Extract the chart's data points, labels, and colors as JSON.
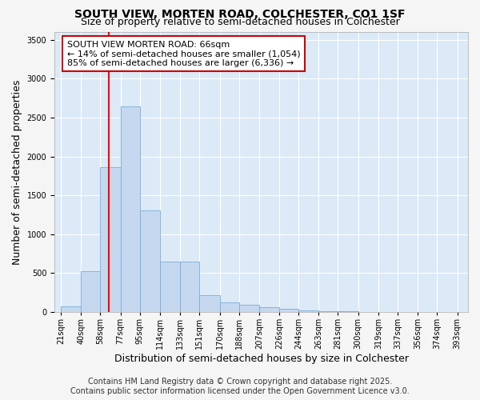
{
  "title": "SOUTH VIEW, MORTEN ROAD, COLCHESTER, CO1 1SF",
  "subtitle": "Size of property relative to semi-detached houses in Colchester",
  "xlabel": "Distribution of semi-detached houses by size in Colchester",
  "ylabel": "Number of semi-detached properties",
  "footer_line1": "Contains HM Land Registry data © Crown copyright and database right 2025.",
  "footer_line2": "Contains public sector information licensed under the Open Government Licence v3.0.",
  "annotation_title": "SOUTH VIEW MORTEN ROAD: 66sqm",
  "annotation_line2": "← 14% of semi-detached houses are smaller (1,054)",
  "annotation_line3": "85% of semi-detached houses are larger (6,336) →",
  "property_size": 66,
  "bin_edges": [
    21,
    40,
    58,
    77,
    95,
    114,
    133,
    151,
    170,
    188,
    207,
    226,
    244,
    263,
    281,
    300,
    319,
    337,
    356,
    374,
    393
  ],
  "bar_heights": [
    75,
    530,
    1860,
    2640,
    1310,
    650,
    650,
    220,
    120,
    90,
    65,
    45,
    25,
    15,
    8,
    5,
    3,
    2,
    1,
    1
  ],
  "tick_labels": [
    "21sqm",
    "40sqm",
    "58sqm",
    "77sqm",
    "95sqm",
    "114sqm",
    "133sqm",
    "151sqm",
    "170sqm",
    "188sqm",
    "207sqm",
    "226sqm",
    "244sqm",
    "263sqm",
    "281sqm",
    "300sqm",
    "319sqm",
    "337sqm",
    "356sqm",
    "374sqm",
    "393sqm"
  ],
  "bar_color": "#c5d8f0",
  "bar_edge_color": "#7aadd4",
  "red_line_x": 66,
  "ylim": [
    0,
    3600
  ],
  "yticks": [
    0,
    500,
    1000,
    1500,
    2000,
    2500,
    3000,
    3500
  ],
  "xlim_left": 15,
  "xlim_right": 403,
  "fig_bg_color": "#f5f5f5",
  "plot_bg_color": "#dce9f7",
  "grid_color": "#ffffff",
  "annotation_box_bg": "#ffffff",
  "annotation_box_edge": "#cc0000",
  "title_fontsize": 10,
  "subtitle_fontsize": 9,
  "axis_label_fontsize": 9,
  "tick_fontsize": 7,
  "annotation_fontsize": 8,
  "footer_fontsize": 7
}
